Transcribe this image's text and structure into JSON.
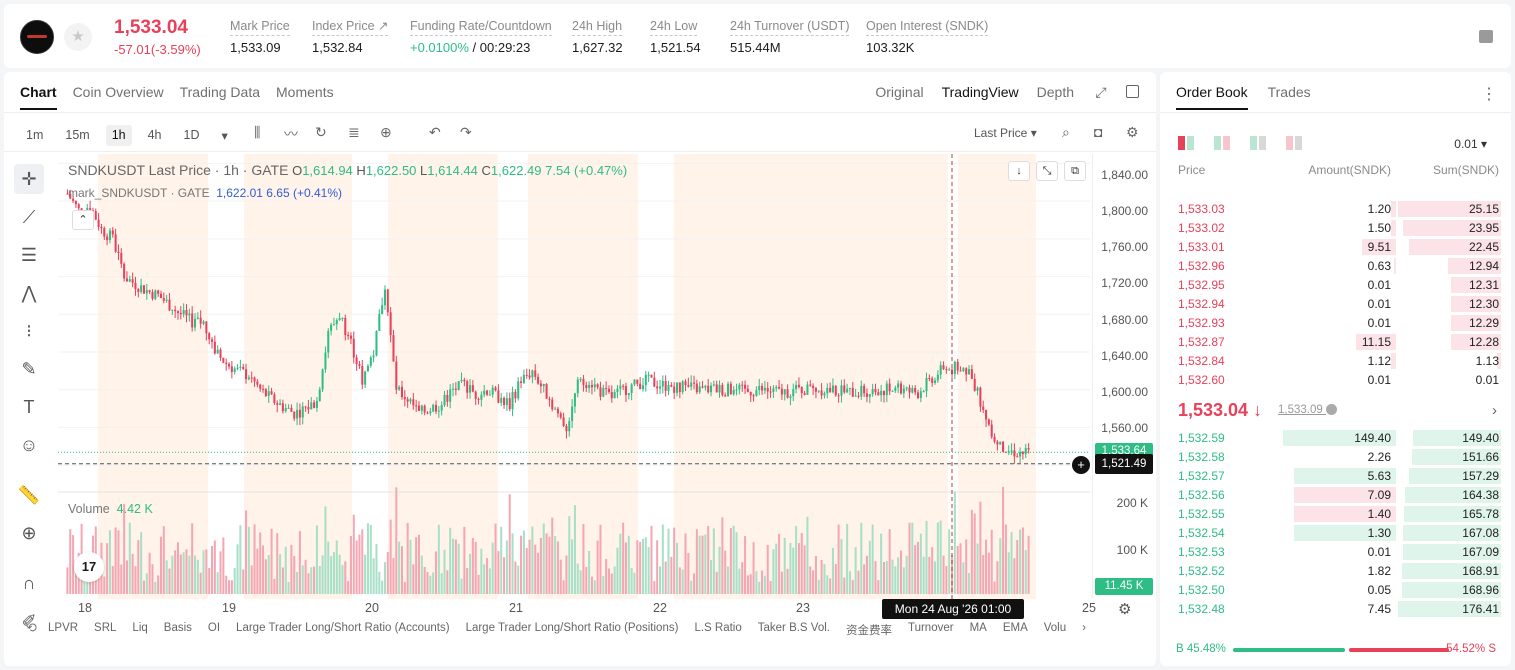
{
  "ticker": {
    "price": "1,533.04",
    "change": "-57.01(-3.59%)",
    "stats": [
      {
        "label": "Mark Price",
        "value": "1,533.09"
      },
      {
        "label": "Index Price ↗",
        "value": "1,532.84"
      },
      {
        "label": "Funding Rate/Countdown",
        "value_green": "+0.0100%",
        "value": "/ 00:29:23"
      },
      {
        "label": "24h High",
        "value": "1,627.32"
      },
      {
        "label": "24h Low",
        "value": "1,521.54"
      },
      {
        "label": "24h Turnover (USDT)",
        "value": "515.44M"
      },
      {
        "label": "Open Interest (SNDK)",
        "value": "103.32K"
      }
    ]
  },
  "chart_tabs": [
    "Chart",
    "Coin Overview",
    "Trading Data",
    "Moments"
  ],
  "chart_views": [
    "Original",
    "TradingView",
    "Depth"
  ],
  "intervals": [
    "1m",
    "15m",
    "1h",
    "4h",
    "1D"
  ],
  "price_type": "Last Price",
  "legend": {
    "title": "SNDKUSDT Last Price · 1h · GATE",
    "ohlc": {
      "o": "1,614.94",
      "h": "1,622.50",
      "l": "1,614.44",
      "c": "1,622.49",
      "chg": "7.54 (+0.47%)"
    },
    "mark_label": "mark_SNDKUSDT · GATE",
    "mark_value": "1,622.01  6.65 (+0.41%)",
    "volume_label": "Volume",
    "volume_value": "4.42 K"
  },
  "y_axis_labels": [
    "1,840.00",
    "1,800.00",
    "1,760.00",
    "1,720.00",
    "1,680.00",
    "1,640.00",
    "1,600.00",
    "1,560.00"
  ],
  "y_markers": {
    "last": "1,533.64",
    "cross": "1,521.49",
    "vol_right": "11.45 K"
  },
  "vol_axis_labels": [
    "200 K",
    "100 K"
  ],
  "x_axis_labels": [
    "18",
    "19",
    "20",
    "21",
    "22",
    "23",
    "25"
  ],
  "crosshair_time": "Mon 24 Aug '26   01:00",
  "indicators": [
    "LPVR",
    "SRL",
    "Liq",
    "Basis",
    "OI",
    "Large Trader Long/Short Ratio (Accounts)",
    "Large Trader Long/Short Ratio (Positions)",
    "L.S Ratio",
    "Taker B.S Vol.",
    "资金费率",
    "Turnover",
    "MA",
    "EMA",
    "Volu"
  ],
  "chart_data": {
    "type": "candlestick",
    "title": "SNDKUSDT Last Price · 1h · GATE",
    "ylim": [
      1500,
      1850
    ],
    "closes": [
      1808,
      1790,
      1795,
      1770,
      1760,
      1720,
      1712,
      1705,
      1700,
      1690,
      1680,
      1672,
      1670,
      1640,
      1628,
      1620,
      1615,
      1600,
      1590,
      1582,
      1575,
      1580,
      1588,
      1660,
      1680,
      1650,
      1610,
      1640,
      1710,
      1600,
      1590,
      1575,
      1580,
      1585,
      1600,
      1605,
      1595,
      1600,
      1592,
      1585,
      1610,
      1620,
      1600,
      1580,
      1560,
      1605,
      1610,
      1598,
      1592,
      1600,
      1605,
      1610,
      1606,
      1604,
      1603,
      1602,
      1600,
      1601,
      1600,
      1599,
      1598,
      1600,
      1598,
      1597,
      1599,
      1600,
      1601,
      1600,
      1598,
      1597,
      1598,
      1599,
      1600,
      1602,
      1598,
      1597,
      1610,
      1620,
      1622,
      1625,
      1605,
      1570,
      1540,
      1535,
      1533
    ],
    "volume_ylim": [
      0,
      220000
    ]
  },
  "orderbook": {
    "tabs": [
      "Order Book",
      "Trades"
    ],
    "precision": "0.01",
    "headers": [
      "Price",
      "Amount(SNDK)",
      "Sum(SNDK)"
    ],
    "asks": [
      {
        "p": "1,533.03",
        "a": "1.20",
        "s": "25.15",
        "ab": 0.04,
        "sb": 1.0
      },
      {
        "p": "1,533.02",
        "a": "1.50",
        "s": "23.95",
        "ab": 0.04,
        "sb": 0.95
      },
      {
        "p": "1,533.01",
        "a": "9.51",
        "s": "22.45",
        "ab": 0.3,
        "sb": 0.89
      },
      {
        "p": "1,532.96",
        "a": "0.63",
        "s": "12.94",
        "ab": 0.02,
        "sb": 0.51
      },
      {
        "p": "1,532.95",
        "a": "0.01",
        "s": "12.31",
        "ab": 0.0,
        "sb": 0.49
      },
      {
        "p": "1,532.94",
        "a": "0.01",
        "s": "12.30",
        "ab": 0.0,
        "sb": 0.49
      },
      {
        "p": "1,532.93",
        "a": "0.01",
        "s": "12.29",
        "ab": 0.0,
        "sb": 0.49
      },
      {
        "p": "1,532.87",
        "a": "11.15",
        "s": "12.28",
        "ab": 0.35,
        "sb": 0.49
      },
      {
        "p": "1,532.84",
        "a": "1.12",
        "s": "1.13",
        "ab": 0.04,
        "sb": 0.04
      },
      {
        "p": "1,532.60",
        "a": "0.01",
        "s": "0.01",
        "ab": 0.0,
        "sb": 0.0
      }
    ],
    "mid_price": "1,533.04 ↓",
    "mid_mark": "1,533.09",
    "bids": [
      {
        "p": "1,532.59",
        "a": "149.40",
        "s": "149.40",
        "ab": 1.0,
        "sb": 0.85,
        "ac": "g"
      },
      {
        "p": "1,532.58",
        "a": "2.26",
        "s": "151.66",
        "ab": 0.0,
        "sb": 0.86,
        "ac": "g"
      },
      {
        "p": "1,532.57",
        "a": "5.63",
        "s": "157.29",
        "ab": 0.9,
        "sb": 0.89,
        "ac": "g"
      },
      {
        "p": "1,532.56",
        "a": "7.09",
        "s": "164.38",
        "ab": 0.9,
        "sb": 0.93,
        "ac": "r"
      },
      {
        "p": "1,532.55",
        "a": "1.40",
        "s": "165.78",
        "ab": 0.9,
        "sb": 0.94,
        "ac": "r"
      },
      {
        "p": "1,532.54",
        "a": "1.30",
        "s": "167.08",
        "ab": 0.9,
        "sb": 0.95,
        "ac": "g"
      },
      {
        "p": "1,532.53",
        "a": "0.01",
        "s": "167.09",
        "ab": 0.0,
        "sb": 0.95,
        "ac": "g"
      },
      {
        "p": "1,532.52",
        "a": "1.82",
        "s": "168.91",
        "ab": 0.0,
        "sb": 0.96,
        "ac": "g"
      },
      {
        "p": "1,532.50",
        "a": "0.05",
        "s": "168.96",
        "ab": 0.0,
        "sb": 0.96,
        "ac": "g"
      },
      {
        "p": "1,532.48",
        "a": "7.45",
        "s": "176.41",
        "ab": 0.0,
        "sb": 1.0,
        "ac": "g"
      }
    ],
    "buy_ratio": "B 45.48%",
    "sell_ratio": "54.52% S"
  },
  "colors": {
    "up": "#2ebd85",
    "down": "#e8415a"
  }
}
